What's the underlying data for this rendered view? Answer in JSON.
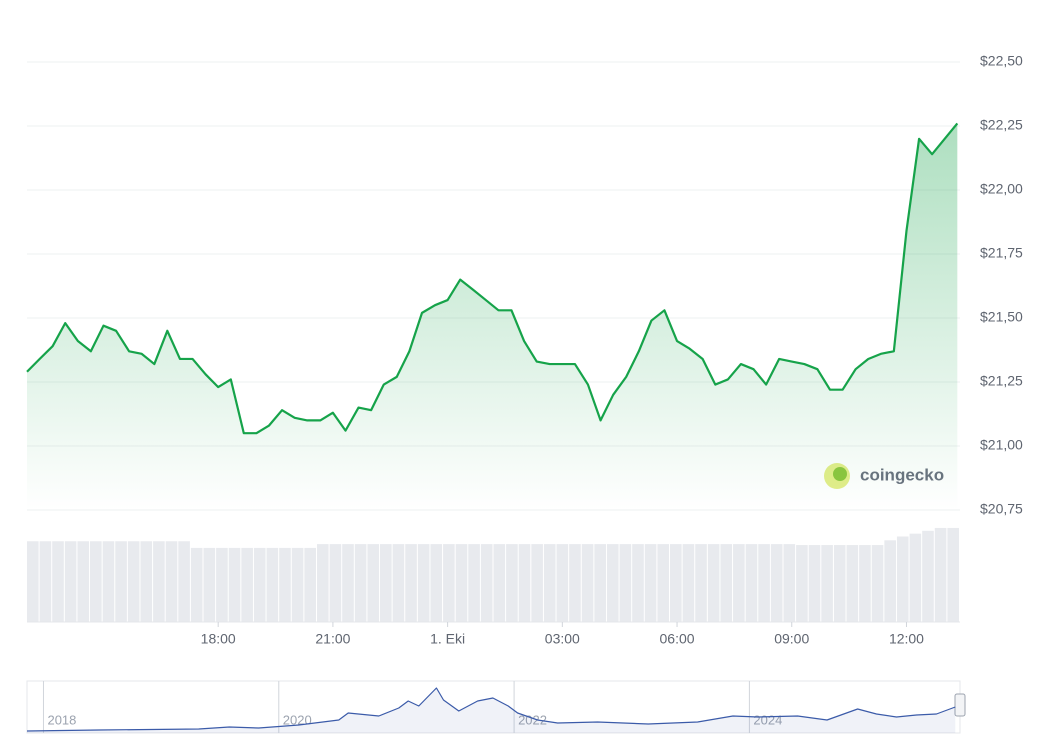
{
  "chart_data": [
    {
      "type": "line",
      "x": [
        13,
        13.33,
        13.67,
        14,
        14.33,
        14.67,
        15,
        15.33,
        15.67,
        16,
        16.33,
        16.67,
        17,
        17.33,
        17.67,
        18,
        18.33,
        18.67,
        19,
        19.33,
        19.67,
        20,
        20.33,
        20.67,
        21,
        21.33,
        21.67,
        22,
        22.33,
        22.67,
        23,
        23.33,
        23.67,
        24,
        24.33,
        24.67,
        25,
        25.33,
        25.67,
        26,
        26.33,
        26.67,
        27,
        27.33,
        27.67,
        28,
        28.33,
        28.67,
        29,
        29.33,
        29.67,
        30,
        30.33,
        30.67,
        31,
        31.33,
        31.67,
        32,
        32.33,
        32.67,
        33,
        33.33,
        33.67,
        34,
        34.33,
        34.67,
        35,
        35.33,
        35.67,
        36,
        36.33,
        36.67,
        37,
        37.33
      ],
      "series": [
        {
          "color": "#16a34a",
          "values": [
            21.29,
            21.34,
            21.39,
            21.48,
            21.41,
            21.37,
            21.47,
            21.45,
            21.37,
            21.36,
            21.32,
            21.45,
            21.34,
            21.34,
            21.28,
            21.23,
            21.26,
            21.05,
            21.05,
            21.08,
            21.14,
            21.11,
            21.1,
            21.1,
            21.13,
            21.06,
            21.15,
            21.14,
            21.24,
            21.27,
            21.37,
            21.52,
            21.55,
            21.57,
            21.65,
            21.61,
            21.57,
            21.53,
            21.53,
            21.41,
            21.33,
            21.32,
            21.32,
            21.32,
            21.24,
            21.1,
            21.2,
            21.27,
            21.37,
            21.49,
            21.53,
            21.41,
            21.38,
            21.34,
            21.24,
            21.26,
            21.32,
            21.3,
            21.24,
            21.34,
            21.33,
            21.32,
            21.3,
            21.22,
            21.22,
            21.3,
            21.34,
            21.36,
            21.37,
            21.84,
            22.2,
            22.14,
            22.2,
            22.26
          ]
        }
      ],
      "volume": {
        "color": "#e8eaee",
        "lim": [
          0,
          100
        ],
        "values": [
          85,
          85,
          85,
          85,
          85,
          85,
          85,
          85,
          85,
          85,
          85,
          85,
          85,
          78,
          78,
          78,
          78,
          78,
          78,
          78,
          78,
          78,
          78,
          82,
          82,
          82,
          82,
          82,
          82,
          82,
          82,
          82,
          82,
          82,
          82,
          82,
          82,
          82,
          82,
          82,
          82,
          82,
          82,
          82,
          82,
          82,
          82,
          82,
          82,
          82,
          82,
          82,
          82,
          82,
          82,
          82,
          82,
          82,
          82,
          82,
          82,
          81,
          81,
          81,
          81,
          81,
          81,
          81,
          86,
          90,
          93,
          96,
          99,
          99
        ]
      },
      "xlim": [
        13,
        37.4
      ],
      "xticks": [
        {
          "value": 18,
          "label": "18:00"
        },
        {
          "value": 21,
          "label": "21:00"
        },
        {
          "value": 24,
          "label": "1. Eki"
        },
        {
          "value": 27,
          "label": "03:00"
        },
        {
          "value": 30,
          "label": "06:00"
        },
        {
          "value": 33,
          "label": "09:00"
        },
        {
          "value": 36,
          "label": "12:00"
        }
      ],
      "ylim": [
        20.75,
        22.5
      ],
      "yticks": [
        {
          "value": 20.75,
          "label": "$20,75"
        },
        {
          "value": 21,
          "label": "$21,00"
        },
        {
          "value": 21.25,
          "label": "$21,25"
        },
        {
          "value": 21.5,
          "label": "$21,50"
        },
        {
          "value": 21.75,
          "label": "$21,75"
        },
        {
          "value": 22,
          "label": "$22,00"
        },
        {
          "value": 22.25,
          "label": "$22,25"
        },
        {
          "value": 22.5,
          "label": "$22,50"
        }
      ],
      "grid": true,
      "watermark": "coingecko"
    },
    {
      "type": "area",
      "x": [
        2017.86,
        2018.47,
        2019.32,
        2019.58,
        2019.83,
        2020.17,
        2020.51,
        2020.59,
        2020.85,
        2021.02,
        2021.1,
        2021.19,
        2021.34,
        2021.4,
        2021.53,
        2021.69,
        2021.82,
        2021.95,
        2022.03,
        2022.2,
        2022.37,
        2022.71,
        2023.14,
        2023.56,
        2023.86,
        2024.07,
        2024.41,
        2024.66,
        2024.92,
        2025.08,
        2025.25,
        2025.42,
        2025.59,
        2025.75
      ],
      "series": [
        {
          "color": "#3b5ba9",
          "values": [
            2,
            3,
            4,
            6,
            5,
            8,
            13,
            20,
            17,
            25,
            32,
            27,
            45,
            33,
            22,
            32,
            35,
            27,
            20,
            13,
            10,
            11,
            9,
            11,
            17,
            16,
            17,
            13,
            24,
            19,
            16,
            18,
            19,
            26
          ]
        }
      ],
      "xlim": [
        2017.86,
        2025.79
      ],
      "ylim": [
        0,
        50
      ],
      "xticks": [
        2018,
        2020,
        2022,
        2024
      ]
    }
  ]
}
